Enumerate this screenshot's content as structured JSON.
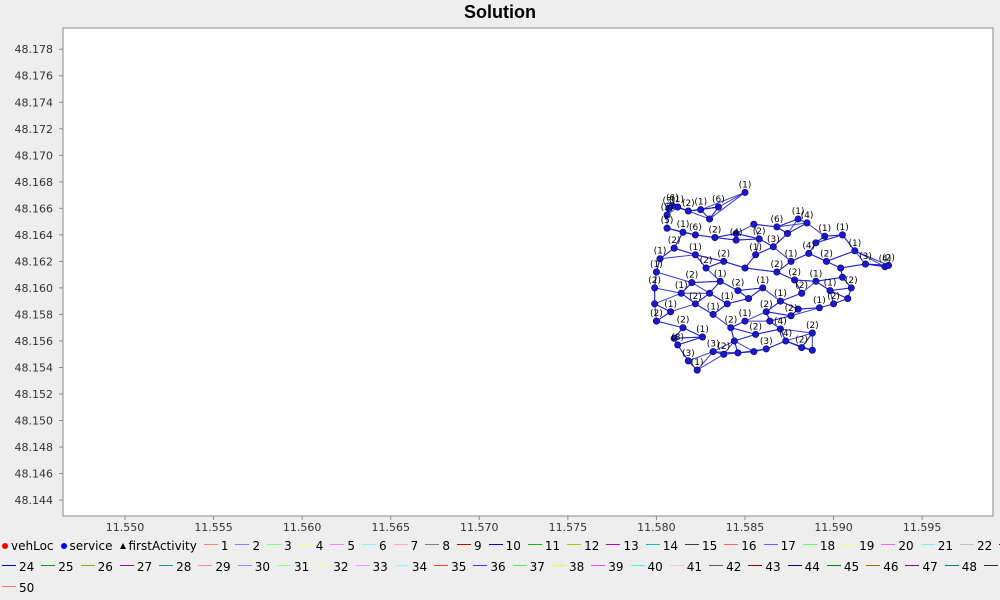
{
  "chart_data": {
    "type": "scatter",
    "title": "Solution",
    "xlim": [
      11.5465,
      11.599
    ],
    "ylim": [
      48.1428,
      48.1796
    ],
    "x_ticks": [
      "11.550",
      "11.555",
      "11.560",
      "11.565",
      "11.570",
      "11.575",
      "11.580",
      "11.585",
      "11.590",
      "11.595"
    ],
    "y_ticks": [
      "48.144",
      "48.146",
      "48.148",
      "48.150",
      "48.152",
      "48.154",
      "48.156",
      "48.158",
      "48.160",
      "48.162",
      "48.164",
      "48.166",
      "48.168",
      "48.170",
      "48.172",
      "48.174",
      "48.176",
      "48.178"
    ],
    "grid": false,
    "legend_position": "bottom",
    "point_color": "#1a1acc",
    "route_color": "#1a1acc",
    "service_points": [
      {
        "x": 11.585,
        "y": 48.1672,
        "label": "(1)"
      },
      {
        "x": 11.5845,
        "y": 48.1641,
        "label": ""
      },
      {
        "x": 11.5855,
        "y": 48.1648,
        "label": ""
      },
      {
        "x": 11.5835,
        "y": 48.1661,
        "label": "(6)"
      },
      {
        "x": 11.5825,
        "y": 48.1659,
        "label": "(1)"
      },
      {
        "x": 11.5818,
        "y": 48.1658,
        "label": "(2)"
      },
      {
        "x": 11.5812,
        "y": 48.1661,
        "label": "(1)"
      },
      {
        "x": 11.5809,
        "y": 48.1662,
        "label": "(6)"
      },
      {
        "x": 11.5807,
        "y": 48.166,
        "label": "(3)"
      },
      {
        "x": 11.5806,
        "y": 48.1655,
        "label": "(5)"
      },
      {
        "x": 11.583,
        "y": 48.1652,
        "label": ""
      },
      {
        "x": 11.5806,
        "y": 48.1645,
        "label": "(5)"
      },
      {
        "x": 11.5815,
        "y": 48.1642,
        "label": "(1)"
      },
      {
        "x": 11.5822,
        "y": 48.164,
        "label": "(6)"
      },
      {
        "x": 11.5833,
        "y": 48.1638,
        "label": "(2)"
      },
      {
        "x": 11.5845,
        "y": 48.1636,
        "label": "(4)"
      },
      {
        "x": 11.5858,
        "y": 48.1637,
        "label": "(2)"
      },
      {
        "x": 11.5868,
        "y": 48.1646,
        "label": "(6)"
      },
      {
        "x": 11.588,
        "y": 48.1652,
        "label": "(1)"
      },
      {
        "x": 11.5885,
        "y": 48.1649,
        "label": "(4)"
      },
      {
        "x": 11.5895,
        "y": 48.1639,
        "label": "(1)"
      },
      {
        "x": 11.5905,
        "y": 48.164,
        "label": "(1)"
      },
      {
        "x": 11.5912,
        "y": 48.1628,
        "label": "(1)"
      },
      {
        "x": 11.5918,
        "y": 48.1618,
        "label": "(3)"
      },
      {
        "x": 11.5929,
        "y": 48.1616,
        "label": "(4)"
      },
      {
        "x": 11.5931,
        "y": 48.1617,
        "label": "(2)"
      },
      {
        "x": 11.5905,
        "y": 48.1608,
        "label": ""
      },
      {
        "x": 11.591,
        "y": 48.16,
        "label": "(2)"
      },
      {
        "x": 11.5908,
        "y": 48.1592,
        "label": ""
      },
      {
        "x": 11.59,
        "y": 48.1588,
        "label": "(2)"
      },
      {
        "x": 11.5892,
        "y": 48.1585,
        "label": "(1)"
      },
      {
        "x": 11.588,
        "y": 48.1584,
        "label": ""
      },
      {
        "x": 11.5876,
        "y": 48.1579,
        "label": "(2)"
      },
      {
        "x": 11.587,
        "y": 48.1569,
        "label": "(4)"
      },
      {
        "x": 11.5873,
        "y": 48.156,
        "label": "(4)"
      },
      {
        "x": 11.5882,
        "y": 48.1555,
        "label": "(2)"
      },
      {
        "x": 11.5888,
        "y": 48.1553,
        "label": ""
      },
      {
        "x": 11.5888,
        "y": 48.1566,
        "label": "(2)"
      },
      {
        "x": 11.5862,
        "y": 48.1554,
        "label": "(3)"
      },
      {
        "x": 11.5855,
        "y": 48.1552,
        "label": ""
      },
      {
        "x": 11.5846,
        "y": 48.1551,
        "label": ""
      },
      {
        "x": 11.5838,
        "y": 48.155,
        "label": "(2)"
      },
      {
        "x": 11.5832,
        "y": 48.1552,
        "label": "(3)"
      },
      {
        "x": 11.5823,
        "y": 48.1538,
        "label": "(1)"
      },
      {
        "x": 11.5818,
        "y": 48.1545,
        "label": "(3)"
      },
      {
        "x": 11.5812,
        "y": 48.1557,
        "label": "(8)"
      },
      {
        "x": 11.581,
        "y": 48.1562,
        "label": ""
      },
      {
        "x": 11.58,
        "y": 48.1575,
        "label": "(2)"
      },
      {
        "x": 11.5799,
        "y": 48.1588,
        "label": ""
      },
      {
        "x": 11.5799,
        "y": 48.16,
        "label": "(2)"
      },
      {
        "x": 11.58,
        "y": 48.1612,
        "label": "(1)"
      },
      {
        "x": 11.5802,
        "y": 48.1622,
        "label": "(1)"
      },
      {
        "x": 11.581,
        "y": 48.163,
        "label": "(2)"
      },
      {
        "x": 11.5822,
        "y": 48.1625,
        "label": "(1)"
      },
      {
        "x": 11.5828,
        "y": 48.1615,
        "label": "(2)"
      },
      {
        "x": 11.5836,
        "y": 48.1605,
        "label": "(1)"
      },
      {
        "x": 11.5846,
        "y": 48.1598,
        "label": "(2)"
      },
      {
        "x": 11.5852,
        "y": 48.1592,
        "label": ""
      },
      {
        "x": 11.586,
        "y": 48.16,
        "label": "(1)"
      },
      {
        "x": 11.5868,
        "y": 48.1612,
        "label": "(2)"
      },
      {
        "x": 11.5876,
        "y": 48.162,
        "label": "(1)"
      },
      {
        "x": 11.5886,
        "y": 48.1626,
        "label": "(4)"
      },
      {
        "x": 11.5896,
        "y": 48.162,
        "label": "(2)"
      },
      {
        "x": 11.589,
        "y": 48.1605,
        "label": "(1)"
      },
      {
        "x": 11.5882,
        "y": 48.1596,
        "label": "(2)"
      },
      {
        "x": 11.587,
        "y": 48.159,
        "label": "(1)"
      },
      {
        "x": 11.5862,
        "y": 48.1582,
        "label": "(2)"
      },
      {
        "x": 11.585,
        "y": 48.1575,
        "label": "(1)"
      },
      {
        "x": 11.5842,
        "y": 48.157,
        "label": "(2)"
      },
      {
        "x": 11.5832,
        "y": 48.158,
        "label": "(1)"
      },
      {
        "x": 11.5822,
        "y": 48.1588,
        "label": "(2)"
      },
      {
        "x": 11.5814,
        "y": 48.1596,
        "label": "(1)"
      },
      {
        "x": 11.582,
        "y": 48.1604,
        "label": "(2)"
      },
      {
        "x": 11.583,
        "y": 48.1596,
        "label": ""
      },
      {
        "x": 11.584,
        "y": 48.1588,
        "label": "(1)"
      },
      {
        "x": 11.5856,
        "y": 48.1565,
        "label": "(2)"
      },
      {
        "x": 11.5864,
        "y": 48.1575,
        "label": ""
      },
      {
        "x": 11.5878,
        "y": 48.1606,
        "label": "(2)"
      },
      {
        "x": 11.5898,
        "y": 48.1598,
        "label": "(1)"
      },
      {
        "x": 11.5904,
        "y": 48.1615,
        "label": ""
      },
      {
        "x": 11.5815,
        "y": 48.157,
        "label": "(2)"
      },
      {
        "x": 11.5808,
        "y": 48.1582,
        "label": "(1)"
      },
      {
        "x": 11.5826,
        "y": 48.1563,
        "label": "(1)"
      },
      {
        "x": 11.5844,
        "y": 48.156,
        "label": ""
      },
      {
        "x": 11.5866,
        "y": 48.1631,
        "label": "(3)"
      },
      {
        "x": 11.5874,
        "y": 48.1641,
        "label": ""
      },
      {
        "x": 11.589,
        "y": 48.1634,
        "label": ""
      },
      {
        "x": 11.5838,
        "y": 48.162,
        "label": "(2)"
      },
      {
        "x": 11.585,
        "y": 48.1615,
        "label": ""
      },
      {
        "x": 11.5856,
        "y": 48.1625,
        "label": "(1)"
      }
    ]
  },
  "legend": {
    "special": [
      {
        "label": "vehLoc",
        "kind": "dot",
        "color": "#ff0000"
      },
      {
        "label": "service",
        "kind": "dot",
        "color": "#0000ff"
      },
      {
        "label": "firstActivity",
        "kind": "triangle",
        "color": "#000000"
      }
    ],
    "routes": [
      {
        "label": "1",
        "color": "#ff8080"
      },
      {
        "label": "2",
        "color": "#8080ff"
      },
      {
        "label": "3",
        "color": "#80ff80"
      },
      {
        "label": "4",
        "color": "#ffff80"
      },
      {
        "label": "5",
        "color": "#ff80ff"
      },
      {
        "label": "6",
        "color": "#80ffff"
      },
      {
        "label": "7",
        "color": "#ffafaf"
      },
      {
        "label": "8",
        "color": "#808080"
      },
      {
        "label": "9",
        "color": "#c00000"
      },
      {
        "label": "10",
        "color": "#0000c0"
      },
      {
        "label": "11",
        "color": "#00c000"
      },
      {
        "label": "12",
        "color": "#c0c000"
      },
      {
        "label": "13",
        "color": "#c000c0"
      },
      {
        "label": "14",
        "color": "#00c0c0"
      },
      {
        "label": "15",
        "color": "#404040"
      },
      {
        "label": "16",
        "color": "#ff6060"
      },
      {
        "label": "17",
        "color": "#6060ff"
      },
      {
        "label": "18",
        "color": "#60ff60"
      },
      {
        "label": "19",
        "color": "#ffff60"
      },
      {
        "label": "20",
        "color": "#ff60ff"
      },
      {
        "label": "21",
        "color": "#60ffff"
      },
      {
        "label": "22",
        "color": "#c0c0c0"
      },
      {
        "label": "23",
        "color": "#a00000"
      },
      {
        "label": "24",
        "color": "#0000a0"
      },
      {
        "label": "25",
        "color": "#00a000"
      },
      {
        "label": "26",
        "color": "#a0a000"
      },
      {
        "label": "27",
        "color": "#a000a0"
      },
      {
        "label": "28",
        "color": "#00a0a0"
      },
      {
        "label": "29",
        "color": "#ff9090"
      },
      {
        "label": "30",
        "color": "#9090ff"
      },
      {
        "label": "31",
        "color": "#90ff90"
      },
      {
        "label": "32",
        "color": "#ffff90"
      },
      {
        "label": "33",
        "color": "#ff90ff"
      },
      {
        "label": "34",
        "color": "#90ffff"
      },
      {
        "label": "35",
        "color": "#ff4040"
      },
      {
        "label": "36",
        "color": "#4040ff"
      },
      {
        "label": "37",
        "color": "#40ff40"
      },
      {
        "label": "38",
        "color": "#ffff40"
      },
      {
        "label": "39",
        "color": "#ff40ff"
      },
      {
        "label": "40",
        "color": "#40ffff"
      },
      {
        "label": "41",
        "color": "#ffc0c0"
      },
      {
        "label": "42",
        "color": "#606060"
      },
      {
        "label": "43",
        "color": "#800000"
      },
      {
        "label": "44",
        "color": "#000080"
      },
      {
        "label": "45",
        "color": "#008000"
      },
      {
        "label": "46",
        "color": "#808000"
      },
      {
        "label": "47",
        "color": "#800080"
      },
      {
        "label": "48",
        "color": "#008080"
      },
      {
        "label": "49",
        "color": "#303030"
      },
      {
        "label": "50",
        "color": "#ff7070"
      }
    ]
  }
}
